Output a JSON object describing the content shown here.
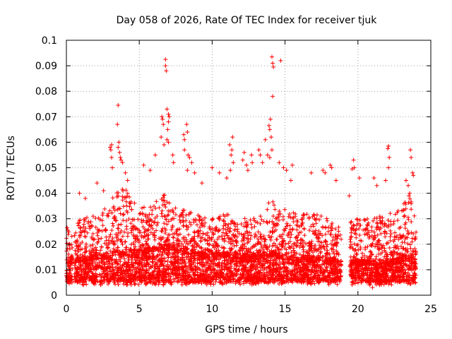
{
  "chart_data": {
    "type": "scatter",
    "title": "Day 058 of 2026, Rate Of TEC Index for receiver tjuk",
    "xlabel": "GPS time / hours",
    "ylabel": "ROTI / TECUs",
    "xlim": [
      0,
      25
    ],
    "ylim": [
      0,
      0.1
    ],
    "xticks": [
      0,
      5,
      10,
      15,
      20,
      25
    ],
    "xtick_labels": [
      "0",
      "5",
      "10",
      "15",
      "20",
      "25"
    ],
    "yticks": [
      0,
      0.01,
      0.02,
      0.03,
      0.04,
      0.05,
      0.06,
      0.07,
      0.08,
      0.09,
      0.1
    ],
    "ytick_labels": [
      "0",
      "0.01",
      "0.02",
      "0.03",
      "0.04",
      "0.05",
      "0.06",
      "0.07",
      "0.08",
      "0.09",
      "0.1"
    ],
    "grid": true,
    "marker": "+",
    "color": "#ff0000",
    "data_gaps_hours": [
      [
        0.4,
        0.55
      ],
      [
        18.85,
        19.45
      ],
      [
        24.0,
        25.0
      ]
    ],
    "density_envelope": {
      "x": [
        0,
        1,
        2,
        3,
        3.5,
        4,
        5,
        6,
        6.8,
        7,
        8,
        9,
        10,
        11,
        12,
        13,
        13.5,
        14,
        14.5,
        15,
        16,
        17,
        18,
        18.8,
        19.5,
        20,
        21,
        22,
        23,
        23.5,
        24
      ],
      "baseline": [
        0.012,
        0.013,
        0.014,
        0.015,
        0.016,
        0.016,
        0.016,
        0.017,
        0.018,
        0.018,
        0.016,
        0.015,
        0.015,
        0.015,
        0.014,
        0.014,
        0.014,
        0.015,
        0.015,
        0.014,
        0.013,
        0.013,
        0.013,
        0.012,
        0.012,
        0.012,
        0.012,
        0.012,
        0.013,
        0.014,
        0.013
      ],
      "typical_max": [
        0.026,
        0.03,
        0.032,
        0.036,
        0.042,
        0.042,
        0.034,
        0.036,
        0.04,
        0.04,
        0.034,
        0.032,
        0.03,
        0.032,
        0.03,
        0.031,
        0.034,
        0.04,
        0.038,
        0.034,
        0.032,
        0.032,
        0.03,
        0.027,
        0.03,
        0.03,
        0.03,
        0.032,
        0.034,
        0.04,
        0.03
      ]
    },
    "points": [
      [
        0.05,
        0.0265
      ],
      [
        0.1,
        0.0255
      ],
      [
        0.9,
        0.04
      ],
      [
        1.3,
        0.038
      ],
      [
        2.1,
        0.044
      ],
      [
        2.55,
        0.041
      ],
      [
        3.0,
        0.058
      ],
      [
        3.05,
        0.057
      ],
      [
        3.1,
        0.059
      ],
      [
        3.1,
        0.054
      ],
      [
        3.15,
        0.05
      ],
      [
        3.55,
        0.0745
      ],
      [
        3.5,
        0.067
      ],
      [
        3.6,
        0.06
      ],
      [
        3.55,
        0.058
      ],
      [
        3.65,
        0.056
      ],
      [
        3.7,
        0.054
      ],
      [
        3.75,
        0.053
      ],
      [
        3.85,
        0.052
      ],
      [
        4.05,
        0.048
      ],
      [
        4.2,
        0.045
      ],
      [
        5.3,
        0.051
      ],
      [
        5.75,
        0.049
      ],
      [
        6.1,
        0.055
      ],
      [
        6.55,
        0.07
      ],
      [
        6.6,
        0.069
      ],
      [
        6.65,
        0.067
      ],
      [
        6.5,
        0.062
      ],
      [
        6.8,
        0.0925
      ],
      [
        6.8,
        0.09
      ],
      [
        6.85,
        0.088
      ],
      [
        6.9,
        0.073
      ],
      [
        7.0,
        0.071
      ],
      [
        7.05,
        0.07
      ],
      [
        7.0,
        0.068
      ],
      [
        6.95,
        0.065
      ],
      [
        6.9,
        0.061
      ],
      [
        7.0,
        0.06
      ],
      [
        6.7,
        0.059
      ],
      [
        7.3,
        0.055
      ],
      [
        7.35,
        0.052
      ],
      [
        8.05,
        0.063
      ],
      [
        8.1,
        0.061
      ],
      [
        8.25,
        0.067
      ],
      [
        8.3,
        0.064
      ],
      [
        8.1,
        0.057
      ],
      [
        8.35,
        0.055
      ],
      [
        8.45,
        0.054
      ],
      [
        8.6,
        0.052
      ],
      [
        8.3,
        0.049
      ],
      [
        8.8,
        0.048
      ],
      [
        9.3,
        0.044
      ],
      [
        10.0,
        0.05
      ],
      [
        10.5,
        0.048
      ],
      [
        11.0,
        0.046
      ],
      [
        11.2,
        0.059
      ],
      [
        11.4,
        0.062
      ],
      [
        11.35,
        0.057
      ],
      [
        11.3,
        0.055
      ],
      [
        11.45,
        0.052
      ],
      [
        11.25,
        0.049
      ],
      [
        12.1,
        0.053
      ],
      [
        12.2,
        0.056
      ],
      [
        12.35,
        0.051
      ],
      [
        12.45,
        0.049
      ],
      [
        12.7,
        0.055
      ],
      [
        12.75,
        0.052
      ],
      [
        13.2,
        0.057
      ],
      [
        13.3,
        0.055
      ],
      [
        13.45,
        0.052
      ],
      [
        13.65,
        0.061
      ],
      [
        13.8,
        0.055
      ],
      [
        14.1,
        0.0935
      ],
      [
        14.15,
        0.091
      ],
      [
        14.2,
        0.0895
      ],
      [
        14.7,
        0.092
      ],
      [
        14.15,
        0.078
      ],
      [
        13.9,
        0.0665
      ],
      [
        14.0,
        0.069
      ],
      [
        13.95,
        0.065
      ],
      [
        14.05,
        0.062
      ],
      [
        14.1,
        0.057
      ],
      [
        13.95,
        0.054
      ],
      [
        14.6,
        0.052
      ],
      [
        14.9,
        0.05
      ],
      [
        15.1,
        0.049
      ],
      [
        15.4,
        0.045
      ],
      [
        15.5,
        0.051
      ],
      [
        16.8,
        0.048
      ],
      [
        17.6,
        0.049
      ],
      [
        17.75,
        0.048
      ],
      [
        18.1,
        0.051
      ],
      [
        18.2,
        0.05
      ],
      [
        18.5,
        0.045
      ],
      [
        19.4,
        0.039
      ],
      [
        19.6,
        0.0495
      ],
      [
        19.7,
        0.053
      ],
      [
        19.75,
        0.05
      ],
      [
        20.1,
        0.046
      ],
      [
        21.1,
        0.046
      ],
      [
        21.3,
        0.043
      ],
      [
        21.9,
        0.045
      ],
      [
        22.05,
        0.0575
      ],
      [
        22.1,
        0.0585
      ],
      [
        22.15,
        0.054
      ],
      [
        22.1,
        0.05
      ],
      [
        23.3,
        0.045
      ],
      [
        23.45,
        0.043
      ],
      [
        23.55,
        0.04
      ],
      [
        23.6,
        0.057
      ],
      [
        23.65,
        0.054
      ],
      [
        23.75,
        0.048
      ],
      [
        23.8,
        0.047
      ],
      [
        23.5,
        0.039
      ],
      [
        20.8,
        0.004
      ],
      [
        21.0,
        0.003
      ]
    ]
  }
}
